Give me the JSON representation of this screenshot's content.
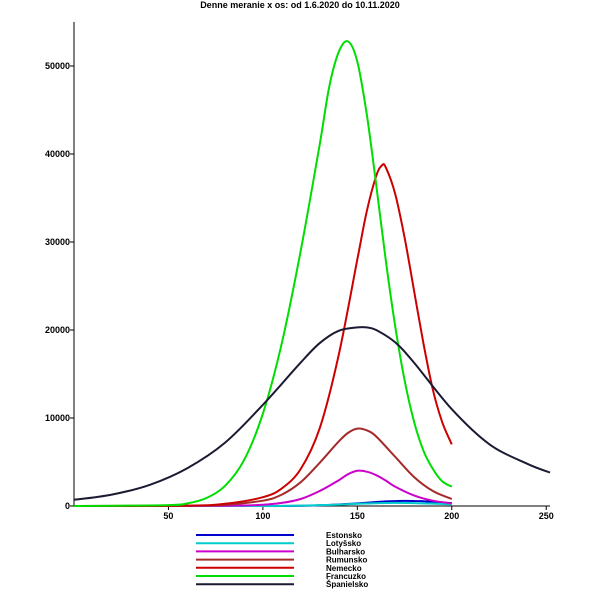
{
  "chart_data": {
    "type": "line",
    "title": "Denne meranie x os: od 1.6.2020 do 10.11.2020",
    "xlim": [
      0,
      252
    ],
    "ylim": [
      0,
      55000
    ],
    "x_ticks": [
      50,
      100,
      150,
      200,
      250
    ],
    "y_ticks": [
      0,
      10000,
      20000,
      30000,
      40000,
      50000
    ],
    "grid": false,
    "legend_position": "bottom-center",
    "series": [
      {
        "name": "Estonsko",
        "color": "#0000cc",
        "x": [
          0,
          100,
          130,
          150,
          160,
          165,
          170,
          175,
          180,
          185,
          190,
          195,
          200
        ],
        "y": [
          0,
          0,
          80,
          300,
          450,
          520,
          560,
          580,
          570,
          540,
          480,
          400,
          330
        ]
      },
      {
        "name": "Lotyšsko",
        "color": "#00cccc",
        "x": [
          0,
          100,
          130,
          150,
          160,
          170,
          180,
          190,
          200
        ],
        "y": [
          0,
          0,
          100,
          250,
          320,
          350,
          330,
          270,
          200
        ]
      },
      {
        "name": "Bulharsko",
        "color": "#cc00cc",
        "x": [
          0,
          80,
          100,
          110,
          120,
          130,
          140,
          145,
          150,
          155,
          160,
          165,
          170,
          180,
          190,
          200
        ],
        "y": [
          0,
          30,
          150,
          350,
          800,
          1700,
          2900,
          3600,
          4000,
          3900,
          3500,
          2900,
          2200,
          1200,
          600,
          300
        ]
      },
      {
        "name": "Rumunsko",
        "color": "#a52a2a",
        "x": [
          0,
          60,
          80,
          100,
          110,
          120,
          130,
          140,
          145,
          150,
          155,
          160,
          170,
          180,
          190,
          200
        ],
        "y": [
          0,
          30,
          150,
          600,
          1300,
          2700,
          4900,
          7300,
          8300,
          8800,
          8600,
          7900,
          5600,
          3300,
          1700,
          800
        ]
      },
      {
        "name": "Nemecko",
        "color": "#cc0000",
        "x": [
          0,
          60,
          80,
          100,
          110,
          120,
          130,
          140,
          150,
          155,
          160,
          163,
          165,
          170,
          175,
          180,
          185,
          190,
          195,
          200
        ],
        "y": [
          0,
          50,
          250,
          1000,
          2000,
          4200,
          8800,
          17000,
          28000,
          33500,
          37500,
          38700,
          38500,
          35500,
          30500,
          24500,
          18500,
          13200,
          9500,
          7000
        ]
      },
      {
        "name": "Francuzko",
        "color": "#00dd00",
        "x": [
          0,
          50,
          60,
          70,
          80,
          90,
          100,
          110,
          120,
          130,
          135,
          140,
          145,
          150,
          155,
          160,
          165,
          170,
          175,
          180,
          185,
          190,
          195,
          200
        ],
        "y": [
          0,
          100,
          300,
          900,
          2300,
          5200,
          10500,
          18500,
          29000,
          41000,
          47500,
          51500,
          52800,
          50500,
          44500,
          36500,
          28000,
          20500,
          14300,
          9600,
          6300,
          4200,
          2800,
          2200
        ]
      },
      {
        "name": "Španielsko",
        "color": "#1a1a33",
        "x": [
          0,
          20,
          40,
          60,
          80,
          100,
          120,
          130,
          140,
          150,
          155,
          160,
          170,
          180,
          200,
          220,
          240,
          252
        ],
        "y": [
          700,
          1300,
          2400,
          4300,
          7200,
          11500,
          16300,
          18500,
          19900,
          20300,
          20300,
          20000,
          18600,
          16300,
          11000,
          7000,
          4800,
          3800
        ]
      }
    ]
  }
}
